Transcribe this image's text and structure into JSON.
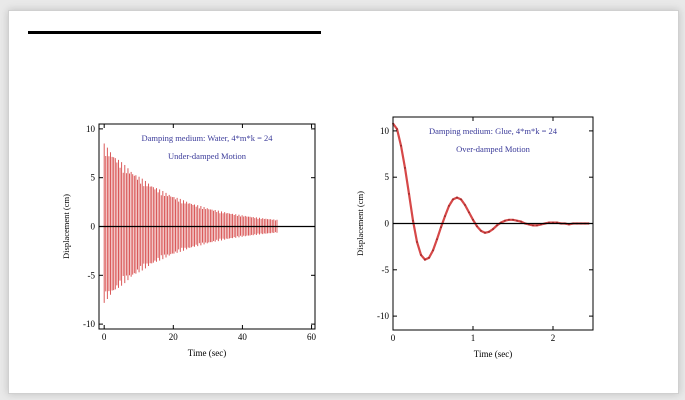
{
  "colors": {
    "signal": "#d64848",
    "annotation": "#3b3b9a",
    "zero_line": "#000000",
    "frame": "#000000"
  },
  "chart_data": [
    {
      "type": "line",
      "title": "Damping medium: Water, 4*m*k = 24",
      "subtitle": "Under-damped Motion",
      "xlabel": "Time (sec)",
      "ylabel": "Displacement (cm)",
      "xlim": [
        -1.5,
        61
      ],
      "ylim": [
        -10.5,
        10.5
      ],
      "xticks": [
        0,
        20,
        40,
        60
      ],
      "yticks": [
        10,
        5,
        0,
        -5,
        -10
      ],
      "grid": false,
      "series": [
        {
          "style": "dense-oscillation",
          "x_start": 0,
          "x_end": 50,
          "initial_amplitude": 8.5,
          "decay_rate": 0.05,
          "cycles_drawn": 110
        }
      ]
    },
    {
      "type": "line",
      "title": "Damping medium: Glue, 4*m*k = 24",
      "subtitle": "Over-damped Motion",
      "xlabel": "Time (sec)",
      "ylabel": "Displacement (cm)",
      "xlim": [
        0,
        2.5
      ],
      "ylim": [
        -11.5,
        11.5
      ],
      "xticks": [
        0,
        1,
        2
      ],
      "yticks": [
        10,
        5,
        0,
        -5,
        -10
      ],
      "grid": false,
      "series": [
        {
          "style": "smooth",
          "x": [
            0,
            0.05,
            0.1,
            0.15,
            0.2,
            0.25,
            0.3,
            0.35,
            0.4,
            0.45,
            0.5,
            0.55,
            0.6,
            0.65,
            0.7,
            0.75,
            0.8,
            0.85,
            0.9,
            0.95,
            1.0,
            1.05,
            1.1,
            1.15,
            1.2,
            1.25,
            1.3,
            1.35,
            1.4,
            1.45,
            1.5,
            1.55,
            1.6,
            1.65,
            1.7,
            1.75,
            1.8,
            1.85,
            1.9,
            1.95,
            2.0,
            2.05,
            2.1,
            2.15,
            2.2,
            2.25,
            2.3,
            2.35,
            2.4,
            2.45
          ],
          "y": [
            10.8,
            10.2,
            8.4,
            6.0,
            3.2,
            0.3,
            -2.0,
            -3.4,
            -3.9,
            -3.7,
            -2.9,
            -1.7,
            -0.4,
            0.8,
            1.9,
            2.6,
            2.8,
            2.6,
            2.0,
            1.2,
            0.4,
            -0.3,
            -0.8,
            -1.0,
            -0.9,
            -0.6,
            -0.2,
            0.1,
            0.3,
            0.4,
            0.4,
            0.3,
            0.2,
            0.0,
            -0.1,
            -0.2,
            -0.2,
            -0.1,
            0.0,
            0.1,
            0.1,
            0.1,
            0.0,
            0.0,
            -0.1,
            0.0,
            0.0,
            0.0,
            0.0,
            0.0
          ]
        }
      ]
    }
  ]
}
